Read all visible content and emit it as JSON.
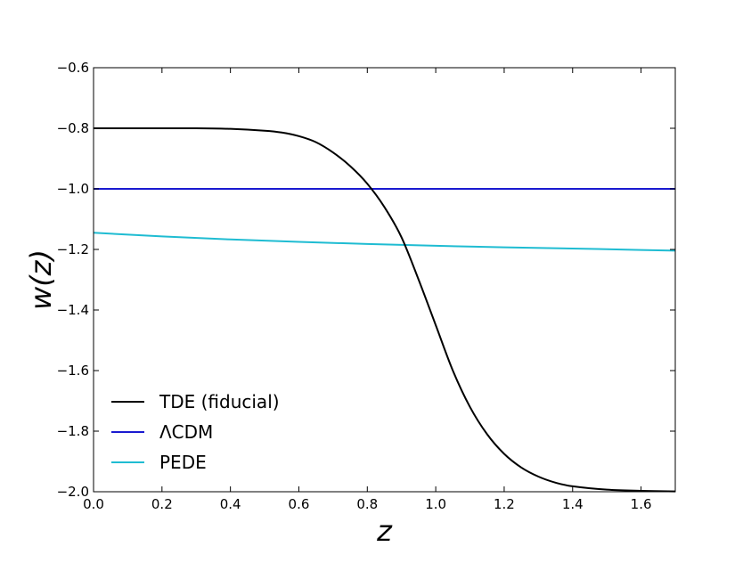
{
  "chart_data": {
    "type": "line",
    "xlabel": "z",
    "ylabel": "w(z)",
    "xlim": [
      0.0,
      1.7
    ],
    "ylim": [
      -2.0,
      -0.6
    ],
    "xticks": [
      "0.0",
      "0.2",
      "0.4",
      "0.6",
      "0.8",
      "1.0",
      "1.2",
      "1.4",
      "1.6"
    ],
    "yticks": [
      "−2.0",
      "−1.8",
      "−1.6",
      "−1.4",
      "−1.2",
      "−1.0",
      "−0.8",
      "−0.6"
    ],
    "xtick_values": [
      0.0,
      0.2,
      0.4,
      0.6,
      0.8,
      1.0,
      1.2,
      1.4,
      1.6
    ],
    "ytick_values": [
      -2.0,
      -1.8,
      -1.6,
      -1.4,
      -1.2,
      -1.0,
      -0.8,
      -0.6
    ],
    "grid": false,
    "legend_position": "lower-left",
    "series": [
      {
        "name": "TDE (fiducial)",
        "color": "#000000",
        "x": [
          0.0,
          0.1,
          0.2,
          0.3,
          0.4,
          0.5,
          0.55,
          0.6,
          0.65,
          0.7,
          0.75,
          0.8,
          0.85,
          0.9,
          0.95,
          1.0,
          1.05,
          1.1,
          1.15,
          1.2,
          1.25,
          1.3,
          1.35,
          1.4,
          1.5,
          1.6,
          1.7
        ],
        "y": [
          -0.8,
          -0.8,
          -0.8,
          -0.8,
          -0.802,
          -0.808,
          -0.814,
          -0.826,
          -0.846,
          -0.88,
          -0.925,
          -0.983,
          -1.06,
          -1.16,
          -1.3,
          -1.45,
          -1.6,
          -1.72,
          -1.81,
          -1.875,
          -1.92,
          -1.95,
          -1.97,
          -1.982,
          -1.993,
          -1.997,
          -1.999
        ]
      },
      {
        "name": "ΛCDM",
        "color": "#1a1ad0",
        "x": [
          0.0,
          1.7
        ],
        "y": [
          -1.0,
          -1.0
        ]
      },
      {
        "name": "PEDE",
        "color": "#1fbcd2",
        "x": [
          0.0,
          0.2,
          0.4,
          0.6,
          0.8,
          1.0,
          1.2,
          1.4,
          1.6,
          1.7
        ],
        "y": [
          -1.145,
          -1.157,
          -1.167,
          -1.175,
          -1.182,
          -1.188,
          -1.193,
          -1.197,
          -1.202,
          -1.204
        ]
      }
    ]
  }
}
